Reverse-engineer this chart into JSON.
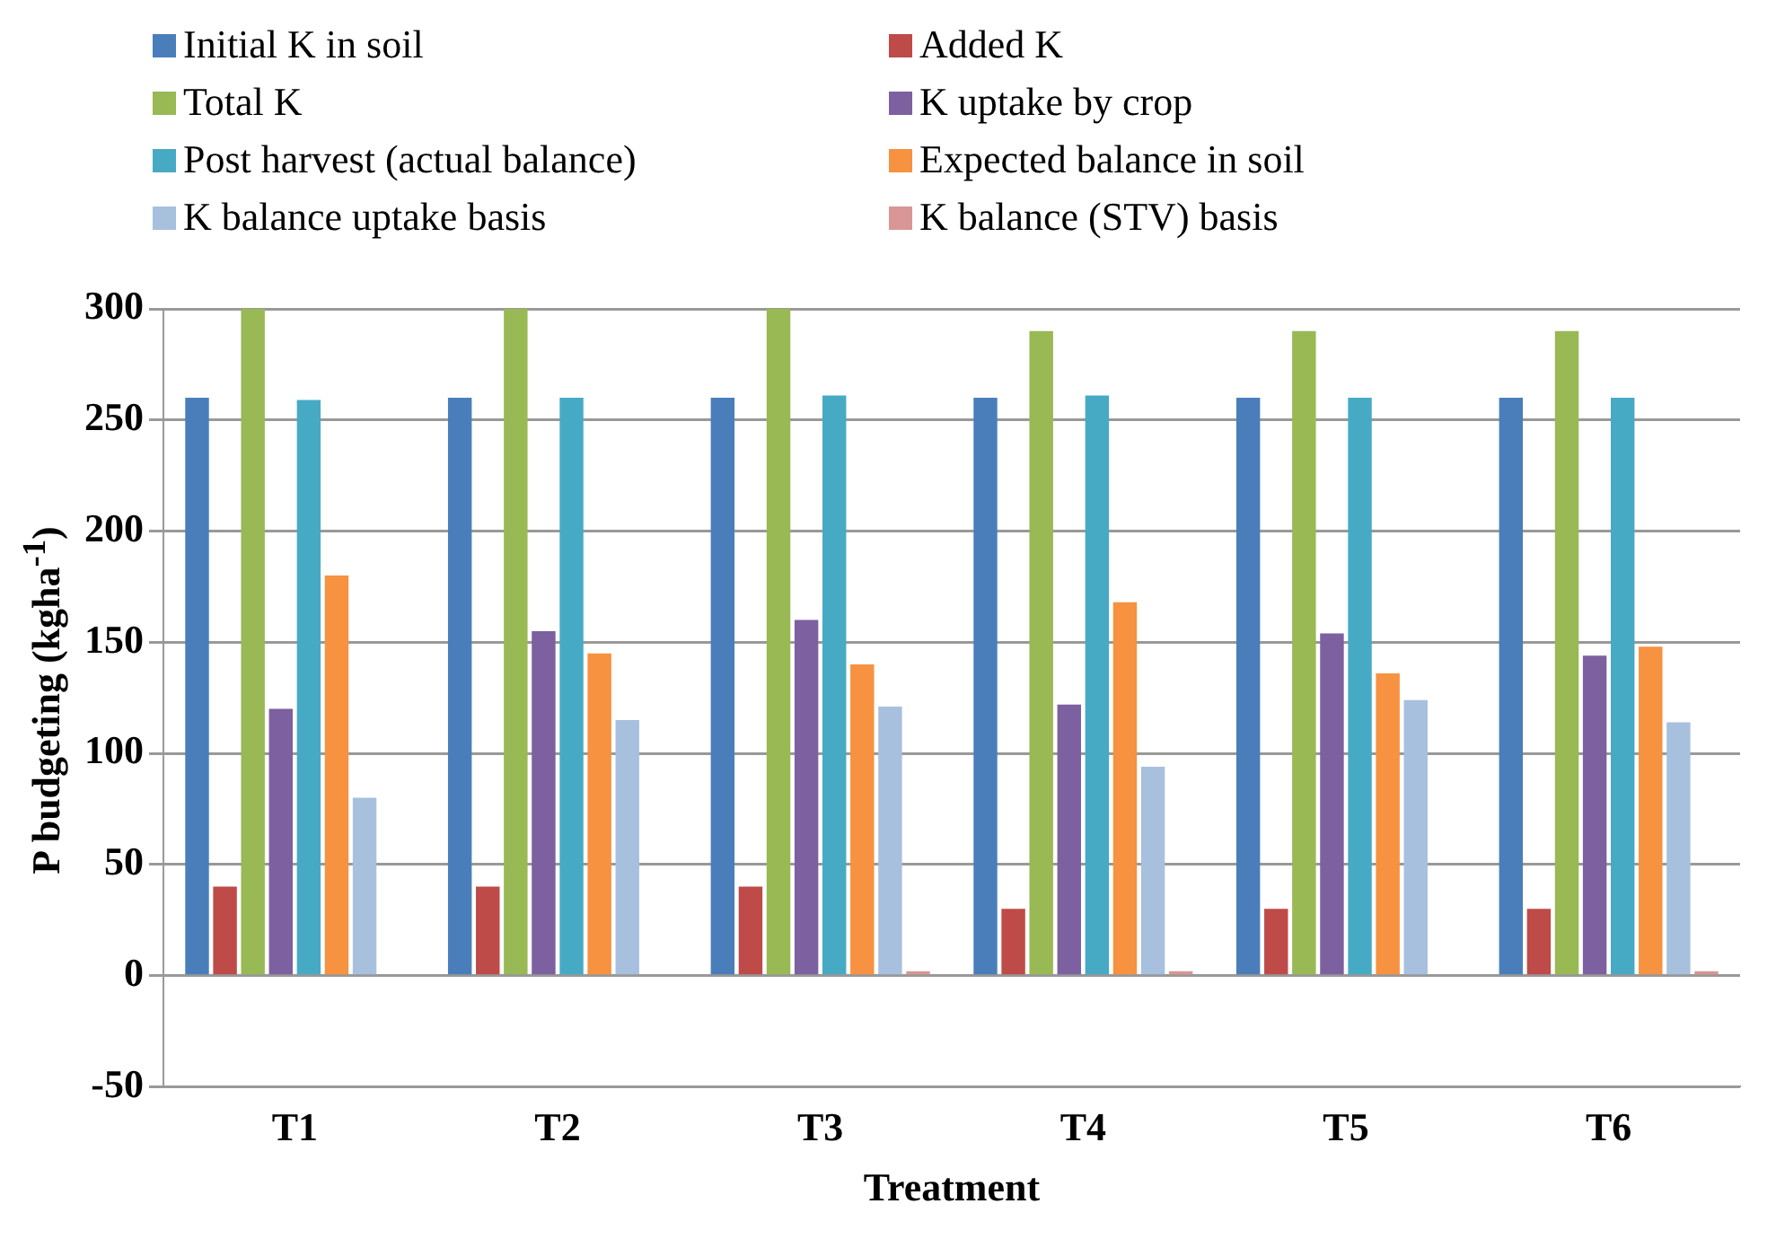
{
  "chart_data": {
    "type": "bar",
    "xlabel": "Treatment",
    "ylabel": "P budgeting  (kgha$^{-1}$)",
    "categories": [
      "T1",
      "T2",
      "T3",
      "T4",
      "T5",
      "T6"
    ],
    "series": [
      {
        "name": "Initial K in soil",
        "color": "#4a7ebb",
        "values": [
          260,
          260,
          260,
          260,
          260,
          260
        ]
      },
      {
        "name": "Added K",
        "color": "#be4b48",
        "values": [
          40,
          40,
          40,
          30,
          30,
          30
        ]
      },
      {
        "name": "Total K",
        "color": "#98b954",
        "values": [
          300,
          300,
          300,
          290,
          290,
          290
        ]
      },
      {
        "name": "K uptake by crop",
        "color": "#7d60a0",
        "values": [
          120,
          155,
          160,
          122,
          154,
          144
        ]
      },
      {
        "name": "Post harvest (actual balance)",
        "color": "#46aac5",
        "values": [
          259,
          260,
          261,
          261,
          260,
          260
        ]
      },
      {
        "name": "Expected balance in soil",
        "color": "#f69240",
        "values": [
          180,
          145,
          140,
          168,
          136,
          148
        ]
      },
      {
        "name": "K balance uptake basis",
        "color": "#a7c0de",
        "values": [
          80,
          115,
          121,
          94,
          124,
          114
        ]
      },
      {
        "name": "K balance (STV) basis",
        "color": "#d99694",
        "values": [
          0,
          0,
          2,
          2,
          0,
          2
        ]
      }
    ],
    "ylim": [
      -50,
      300
    ],
    "yticks": [
      -50,
      0,
      50,
      100,
      150,
      200,
      250,
      300
    ],
    "grid": "y",
    "legend": "top"
  }
}
